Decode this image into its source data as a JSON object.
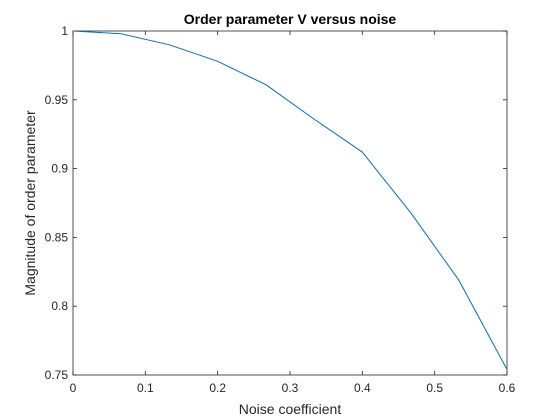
{
  "chart_data": {
    "type": "line",
    "title": "Order parameter V versus noise",
    "xlabel": "Noise coefficient",
    "ylabel": "Magnitude of order parameter",
    "xlim": [
      0,
      0.6
    ],
    "ylim": [
      0.75,
      1
    ],
    "xticks": [
      0,
      0.1,
      0.2,
      0.3,
      0.4,
      0.5,
      0.6
    ],
    "xtick_labels": [
      "0",
      "0.1",
      "0.2",
      "0.3",
      "0.4",
      "0.5",
      "0.6"
    ],
    "yticks": [
      0.75,
      0.8,
      0.85,
      0.9,
      0.95,
      1
    ],
    "ytick_labels": [
      "0.75",
      "0.8",
      "0.85",
      "0.9",
      "0.95",
      "1"
    ],
    "grid": false,
    "box": true,
    "series": [
      {
        "color": "#0072bd",
        "x": [
          0,
          0.0667,
          0.1333,
          0.2,
          0.2667,
          0.3333,
          0.4,
          0.4667,
          0.5333,
          0.6
        ],
        "y": [
          1.0,
          0.998,
          0.99,
          0.978,
          0.961,
          0.936,
          0.912,
          0.868,
          0.819,
          0.754
        ]
      }
    ]
  }
}
